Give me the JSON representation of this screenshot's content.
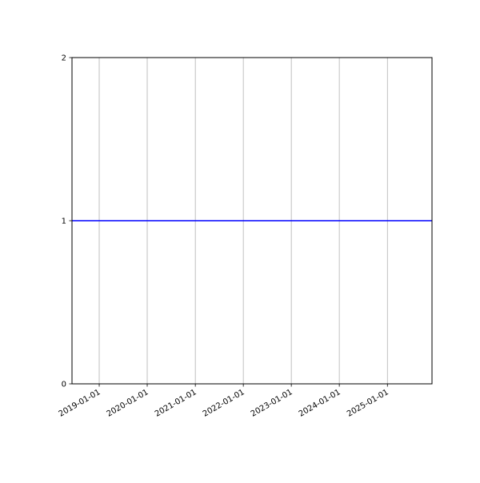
{
  "chart_data": {
    "type": "line",
    "title": "",
    "xlabel": "",
    "ylabel": "",
    "x_axis_type": "date",
    "xlim": [
      "2018-06-08",
      "2025-12-06"
    ],
    "ylim": [
      0,
      2
    ],
    "x_ticks": [
      "2019-01-01",
      "2020-01-01",
      "2021-01-01",
      "2022-01-01",
      "2023-01-01",
      "2024-01-01",
      "2025-01-01"
    ],
    "y_ticks": [
      "0",
      "1",
      "2"
    ],
    "grid": "vertical (x) only",
    "series": [
      {
        "color": "#0000ff",
        "x": [
          "2018-06-08",
          "2025-12-06"
        ],
        "y": [
          1,
          1
        ]
      }
    ]
  }
}
